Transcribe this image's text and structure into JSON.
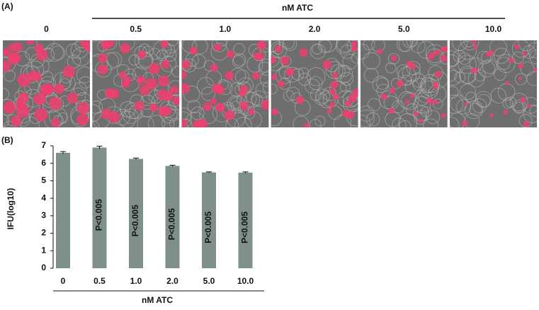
{
  "panel_a": {
    "label": "(A)",
    "title": "nM ATC",
    "columns": [
      "0",
      "0.5",
      "1.0",
      "2.0",
      "5.0",
      "10.0"
    ]
  },
  "panel_b_label": "(B)",
  "chart_data": {
    "type": "bar",
    "ylabel": "IFU(log10)",
    "xlabel": "nM ATC",
    "categories": [
      "0",
      "0.5",
      "1.0",
      "2.0",
      "5.0",
      "10.0"
    ],
    "values": [
      6.6,
      6.9,
      6.25,
      5.85,
      5.48,
      5.47
    ],
    "errors": [
      0.07,
      0.08,
      0.05,
      0.04,
      0.03,
      0.04
    ],
    "annotations": [
      null,
      "P<0.005",
      "P<0.005",
      "P<0.005",
      "P<0.005",
      "P<0.005"
    ],
    "color": "#7f908b",
    "ylim": [
      0,
      7
    ],
    "yticks": [
      0,
      1,
      2,
      3,
      4,
      5,
      6,
      7
    ],
    "grid": false
  }
}
